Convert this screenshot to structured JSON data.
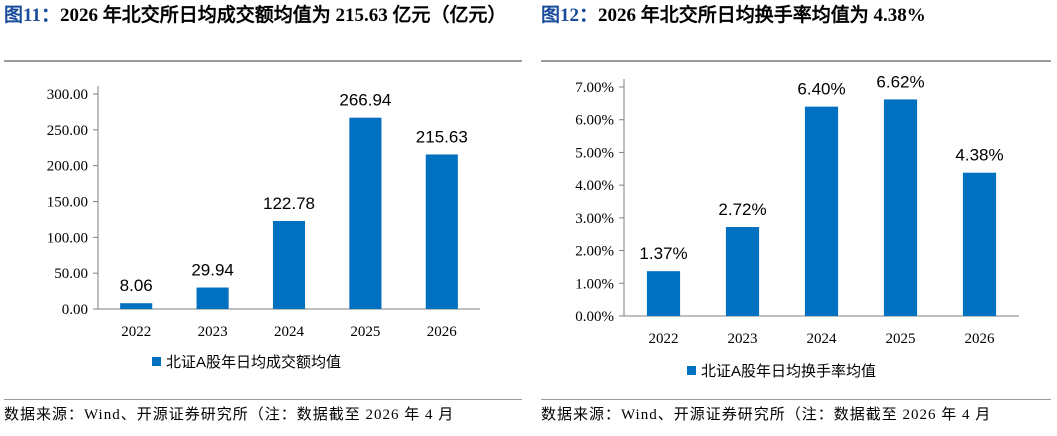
{
  "figures": [
    {
      "title_num": "图11",
      "title_rest": "2026 年北交所日均成交额均值为 215.63 亿元（亿元）",
      "source": "数据来源：Wind、开源证券研究所（注：数据截至 2026 年 4 月",
      "chart_data": {
        "type": "bar",
        "categories": [
          "2022",
          "2023",
          "2024",
          "2025",
          "2026"
        ],
        "series": [
          {
            "name": "北证A股年日均成交额均值",
            "values": [
              8.06,
              29.94,
              122.78,
              266.94,
              215.63
            ]
          }
        ],
        "data_labels": [
          "8.06",
          "29.94",
          "122.78",
          "266.94",
          "215.63"
        ],
        "yticks": [
          "0.00",
          "50.00",
          "100.00",
          "150.00",
          "200.00",
          "250.00",
          "300.00"
        ],
        "ylim": [
          0,
          300
        ],
        "legend_position": "bottom",
        "grid": false,
        "bar_color": "#0070c0"
      }
    },
    {
      "title_num": "图12",
      "title_rest": "2026 年北交所日均换手率均值为 4.38%",
      "source": "数据来源：Wind、开源证券研究所（注：数据截至 2026 年 4 月",
      "chart_data": {
        "type": "bar",
        "categories": [
          "2022",
          "2023",
          "2024",
          "2025",
          "2026"
        ],
        "series": [
          {
            "name": "北证A股年日均换手率均值",
            "values": [
              1.37,
              2.72,
              6.4,
              6.62,
              4.38
            ]
          }
        ],
        "data_labels": [
          "1.37%",
          "2.72%",
          "6.40%",
          "6.62%",
          "4.38%"
        ],
        "yticks": [
          "0.00%",
          "1.00%",
          "2.00%",
          "3.00%",
          "4.00%",
          "5.00%",
          "6.00%",
          "7.00%"
        ],
        "ylim": [
          0,
          7
        ],
        "legend_position": "bottom",
        "grid": false,
        "bar_color": "#0070c0"
      }
    }
  ]
}
